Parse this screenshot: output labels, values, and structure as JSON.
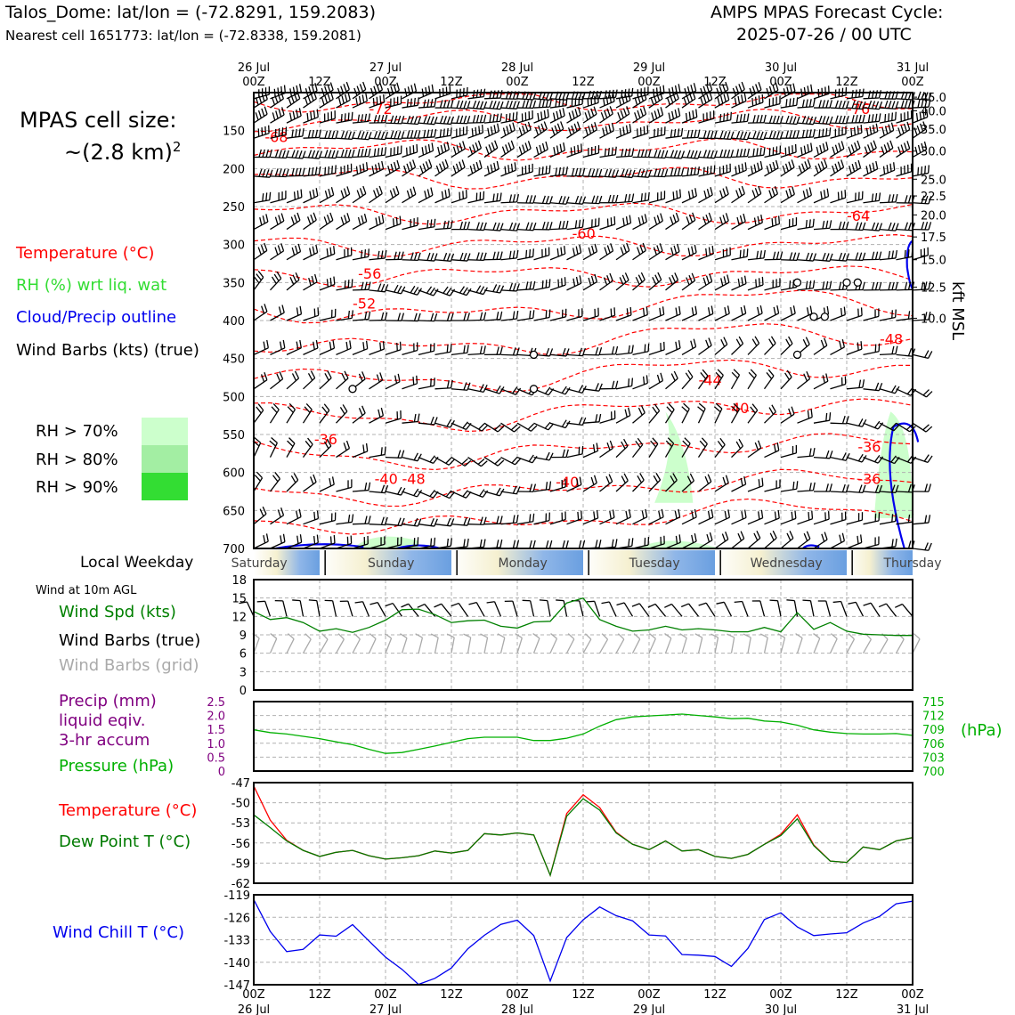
{
  "header": {
    "station_line": "Talos_Dome: lat/lon = (-72.8291, 159.2083)",
    "cell_line": "Nearest cell 1651773: lat/lon = (-72.8338, 159.2081)",
    "cycle_title": "AMPS MPAS Forecast Cycle:",
    "cycle_time": "2025-07-26 / 00 UTC"
  },
  "sidebar": {
    "cell_size_label": "MPAS cell size:",
    "cell_size_value": "~(2.8 km)",
    "cell_size_exp": "2",
    "legend_temperature": "Temperature (°C)",
    "legend_rh": "RH (%) wrt liq. wat",
    "legend_cloud": "Cloud/Precip outline",
    "legend_wind": "Wind Barbs (kts) (true)",
    "rh_levels": [
      "RH > 70%",
      "RH > 80%",
      "RH > 90%"
    ],
    "local_weekday": "Local Weekday",
    "wind_10m": "Wind at 10m AGL",
    "wind_spd_label": "Wind Spd (kts)",
    "wind_barbs_true": "Wind Barbs (true)",
    "wind_barbs_grid": "Wind Barbs (grid)",
    "precip_label_1": "Precip (mm)",
    "precip_label_2": "liquid eqiv.",
    "precip_label_3": "3-hr accum",
    "pressure_label": "Pressure (hPa)",
    "temp_label": "Temperature (°C)",
    "dew_label": "Dew Point T (°C)",
    "chill_label": "Wind Chill T (°C)",
    "hpa_unit": "(hPa)",
    "kft_label": "kft MSL"
  },
  "colors": {
    "temperature": "#ff0000",
    "rh": "#2ee02e",
    "cloud": "#0000ee",
    "precip_axis": "#800080",
    "pressure": "#00b000",
    "dewpoint": "#007a00",
    "wind_speed": "#008000",
    "windchill": "#0000ee",
    "rh70": "#ccffcc",
    "rh80": "#a3eea3",
    "rh90": "#33dd33",
    "grid_barb": "#aaaaaa"
  },
  "weekdays": [
    "Saturday",
    "Sunday",
    "Monday",
    "Tuesday",
    "Wednesday",
    "Thursday"
  ],
  "time_axis": {
    "major_top": [
      "00Z",
      "00Z",
      "00Z",
      "00Z",
      "00Z",
      "00Z"
    ],
    "dates": [
      "26 Jul",
      "27 Jul",
      "28 Jul",
      "29 Jul",
      "30 Jul",
      "31 Jul"
    ],
    "minor": [
      "12Z",
      "12Z",
      "12Z",
      "12Z",
      "12Z"
    ]
  },
  "chart_data": [
    {
      "type": "heatmap",
      "title": "",
      "ylabel_left": "hPa",
      "ylabel_right": "kft MSL",
      "pressure_ticks": [
        150,
        200,
        250,
        300,
        350,
        400,
        450,
        500,
        550,
        600,
        650,
        700
      ],
      "height_ticks": [
        45.0,
        40.0,
        35.0,
        30.0,
        25.0,
        22.5,
        20.0,
        17.5,
        15.0,
        12.5,
        10.0
      ],
      "height_tick_pressure": [
        106,
        124,
        148,
        177,
        214,
        236,
        261,
        290,
        320,
        356,
        397
      ],
      "temperature_contour_labels": [
        {
          "label": "-72",
          "hours": 21,
          "p": 121
        },
        {
          "label": "-76",
          "hours": 108,
          "p": 121
        },
        {
          "label": "-68",
          "hours": 2,
          "p": 158
        },
        {
          "label": "-64",
          "hours": 108,
          "p": 262
        },
        {
          "label": "-60",
          "hours": 58,
          "p": 285
        },
        {
          "label": "-56",
          "hours": 19,
          "p": 338
        },
        {
          "label": "-52",
          "hours": 18,
          "p": 377
        },
        {
          "label": "-48",
          "hours": 114,
          "p": 424
        },
        {
          "label": "-44",
          "hours": 81,
          "p": 478
        },
        {
          "label": "-40",
          "hours": 86,
          "p": 515
        },
        {
          "label": "-36",
          "hours": 11,
          "p": 556
        },
        {
          "label": "-36",
          "hours": 110,
          "p": 566
        },
        {
          "label": "-40",
          "hours": 22,
          "p": 608
        },
        {
          "label": "-48",
          "hours": 27,
          "p": 608
        },
        {
          "label": "-40",
          "hours": 55,
          "p": 612
        },
        {
          "label": "-36",
          "hours": 110,
          "p": 608
        }
      ],
      "xlim_hours": [
        0,
        120
      ]
    },
    {
      "type": "line",
      "title": "",
      "ylim": [
        0,
        18
      ],
      "yticks": [
        0,
        3,
        6,
        9,
        12,
        15,
        18
      ],
      "series": [
        {
          "name": "Wind Spd (kts)",
          "x_hours": [
            0,
            3,
            6,
            9,
            12,
            15,
            18,
            21,
            24,
            27,
            30,
            33,
            36,
            39,
            42,
            45,
            48,
            51,
            54,
            57,
            60,
            63,
            66,
            69,
            72,
            75,
            78,
            81,
            84,
            87,
            90,
            93,
            96,
            99,
            102,
            105,
            108,
            111,
            114,
            117,
            120
          ],
          "values": [
            12.8,
            11.5,
            11.8,
            11.0,
            9.6,
            10.0,
            9.4,
            10.2,
            11.4,
            13.1,
            13.2,
            12.3,
            11.0,
            11.3,
            11.4,
            10.4,
            10.1,
            11.1,
            11.2,
            14.2,
            15.0,
            11.5,
            10.4,
            9.6,
            9.8,
            10.4,
            9.8,
            10.0,
            9.8,
            9.5,
            9.5,
            10.2,
            9.5,
            12.6,
            9.9,
            11.0,
            9.6,
            9.1,
            9.0,
            8.9,
            8.9
          ]
        }
      ]
    },
    {
      "type": "line",
      "title": "",
      "ylim_precip": [
        0,
        2.5
      ],
      "precip_ticks": [
        0,
        0.5,
        1.0,
        1.5,
        2.0,
        2.5
      ],
      "ylim_pressure": [
        700,
        715
      ],
      "pressure_ticks": [
        700,
        703,
        706,
        709,
        712,
        715
      ],
      "series": [
        {
          "name": "Pressure (hPa)",
          "x_hours": [
            0,
            3,
            6,
            9,
            12,
            15,
            18,
            21,
            24,
            27,
            30,
            33,
            36,
            39,
            42,
            45,
            48,
            51,
            54,
            57,
            60,
            63,
            66,
            69,
            72,
            75,
            78,
            81,
            84,
            87,
            90,
            93,
            96,
            99,
            102,
            105,
            108,
            111,
            114,
            117,
            120
          ],
          "values": [
            708.9,
            708.3,
            708.0,
            707.5,
            707.0,
            706.3,
            705.7,
            704.7,
            703.8,
            704.0,
            704.7,
            705.4,
            706.2,
            707.0,
            707.3,
            707.3,
            707.3,
            706.6,
            706.6,
            707.1,
            708.0,
            709.7,
            711.1,
            711.7,
            711.9,
            712.1,
            712.3,
            712.0,
            711.7,
            711.3,
            711.4,
            710.8,
            710.6,
            709.9,
            708.9,
            708.4,
            708.1,
            708.0,
            708.0,
            708.1,
            707.7
          ]
        }
      ]
    },
    {
      "type": "line",
      "title": "",
      "ylim": [
        -62,
        -47
      ],
      "yticks": [
        -62,
        -59,
        -56,
        -53,
        -50,
        -47
      ],
      "series": [
        {
          "name": "Temperature (°C)",
          "x_hours": [
            0,
            3,
            6,
            9,
            12,
            15,
            18,
            21,
            24,
            27,
            30,
            33,
            36,
            39,
            42,
            45,
            48,
            51,
            54,
            57,
            60,
            63,
            66,
            69,
            72,
            75,
            78,
            81,
            84,
            87,
            90,
            93,
            96,
            99,
            102,
            105,
            108,
            111,
            114,
            117,
            120
          ],
          "values": [
            -47.5,
            -52.6,
            -55.6,
            -57.1,
            -58.0,
            -57.4,
            -57.1,
            -57.9,
            -58.4,
            -58.2,
            -57.9,
            -57.2,
            -57.5,
            -57.1,
            -54.6,
            -54.8,
            -54.5,
            -54.8,
            -60.8,
            -51.6,
            -48.8,
            -50.7,
            -54.4,
            -56.2,
            -57.0,
            -55.7,
            -57.2,
            -57.0,
            -58.0,
            -58.3,
            -57.7,
            -56.2,
            -54.7,
            -51.8,
            -56.3,
            -58.7,
            -58.9,
            -56.6,
            -57.0,
            -55.7,
            -55.2
          ]
        },
        {
          "name": "Dew Point T (°C)",
          "x_hours": [
            0,
            3,
            6,
            9,
            12,
            15,
            18,
            21,
            24,
            27,
            30,
            33,
            36,
            39,
            42,
            45,
            48,
            51,
            54,
            57,
            60,
            63,
            66,
            69,
            72,
            75,
            78,
            81,
            84,
            87,
            90,
            93,
            96,
            99,
            102,
            105,
            108,
            111,
            114,
            117,
            120
          ],
          "values": [
            -51.8,
            -53.7,
            -55.7,
            -57.1,
            -58.0,
            -57.4,
            -57.1,
            -57.9,
            -58.4,
            -58.2,
            -57.9,
            -57.2,
            -57.5,
            -57.1,
            -54.6,
            -54.8,
            -54.5,
            -54.8,
            -60.8,
            -52.0,
            -49.4,
            -51.1,
            -54.5,
            -56.2,
            -57.0,
            -55.7,
            -57.2,
            -57.0,
            -58.0,
            -58.3,
            -57.7,
            -56.2,
            -54.9,
            -52.4,
            -56.4,
            -58.7,
            -58.9,
            -56.6,
            -57.0,
            -55.7,
            -55.2
          ]
        }
      ]
    },
    {
      "type": "line",
      "title": "",
      "ylim": [
        -147,
        -119
      ],
      "yticks": [
        -147,
        -140,
        -133,
        -126,
        -119
      ],
      "series": [
        {
          "name": "Wind Chill T (°C)",
          "x_hours": [
            0,
            3,
            6,
            9,
            12,
            15,
            18,
            21,
            24,
            27,
            30,
            33,
            36,
            39,
            42,
            45,
            48,
            51,
            54,
            57,
            60,
            63,
            66,
            69,
            72,
            75,
            78,
            81,
            84,
            87,
            90,
            93,
            96,
            99,
            102,
            105,
            108,
            111,
            114,
            117,
            120
          ],
          "values": [
            -120.5,
            -130.4,
            -136.7,
            -136.0,
            -131.5,
            -131.9,
            -128.3,
            -133.4,
            -138.4,
            -142.2,
            -146.9,
            -145.0,
            -141.8,
            -135.8,
            -131.6,
            -128.2,
            -126.9,
            -131.7,
            -145.8,
            -132.3,
            -126.8,
            -122.8,
            -125.5,
            -127.1,
            -131.5,
            -131.8,
            -137.6,
            -137.8,
            -138.2,
            -141.3,
            -135.7,
            -126.7,
            -124.6,
            -129.0,
            -131.7,
            -131.2,
            -130.8,
            -127.8,
            -125.7,
            -121.8,
            -121.0
          ]
        }
      ]
    }
  ]
}
